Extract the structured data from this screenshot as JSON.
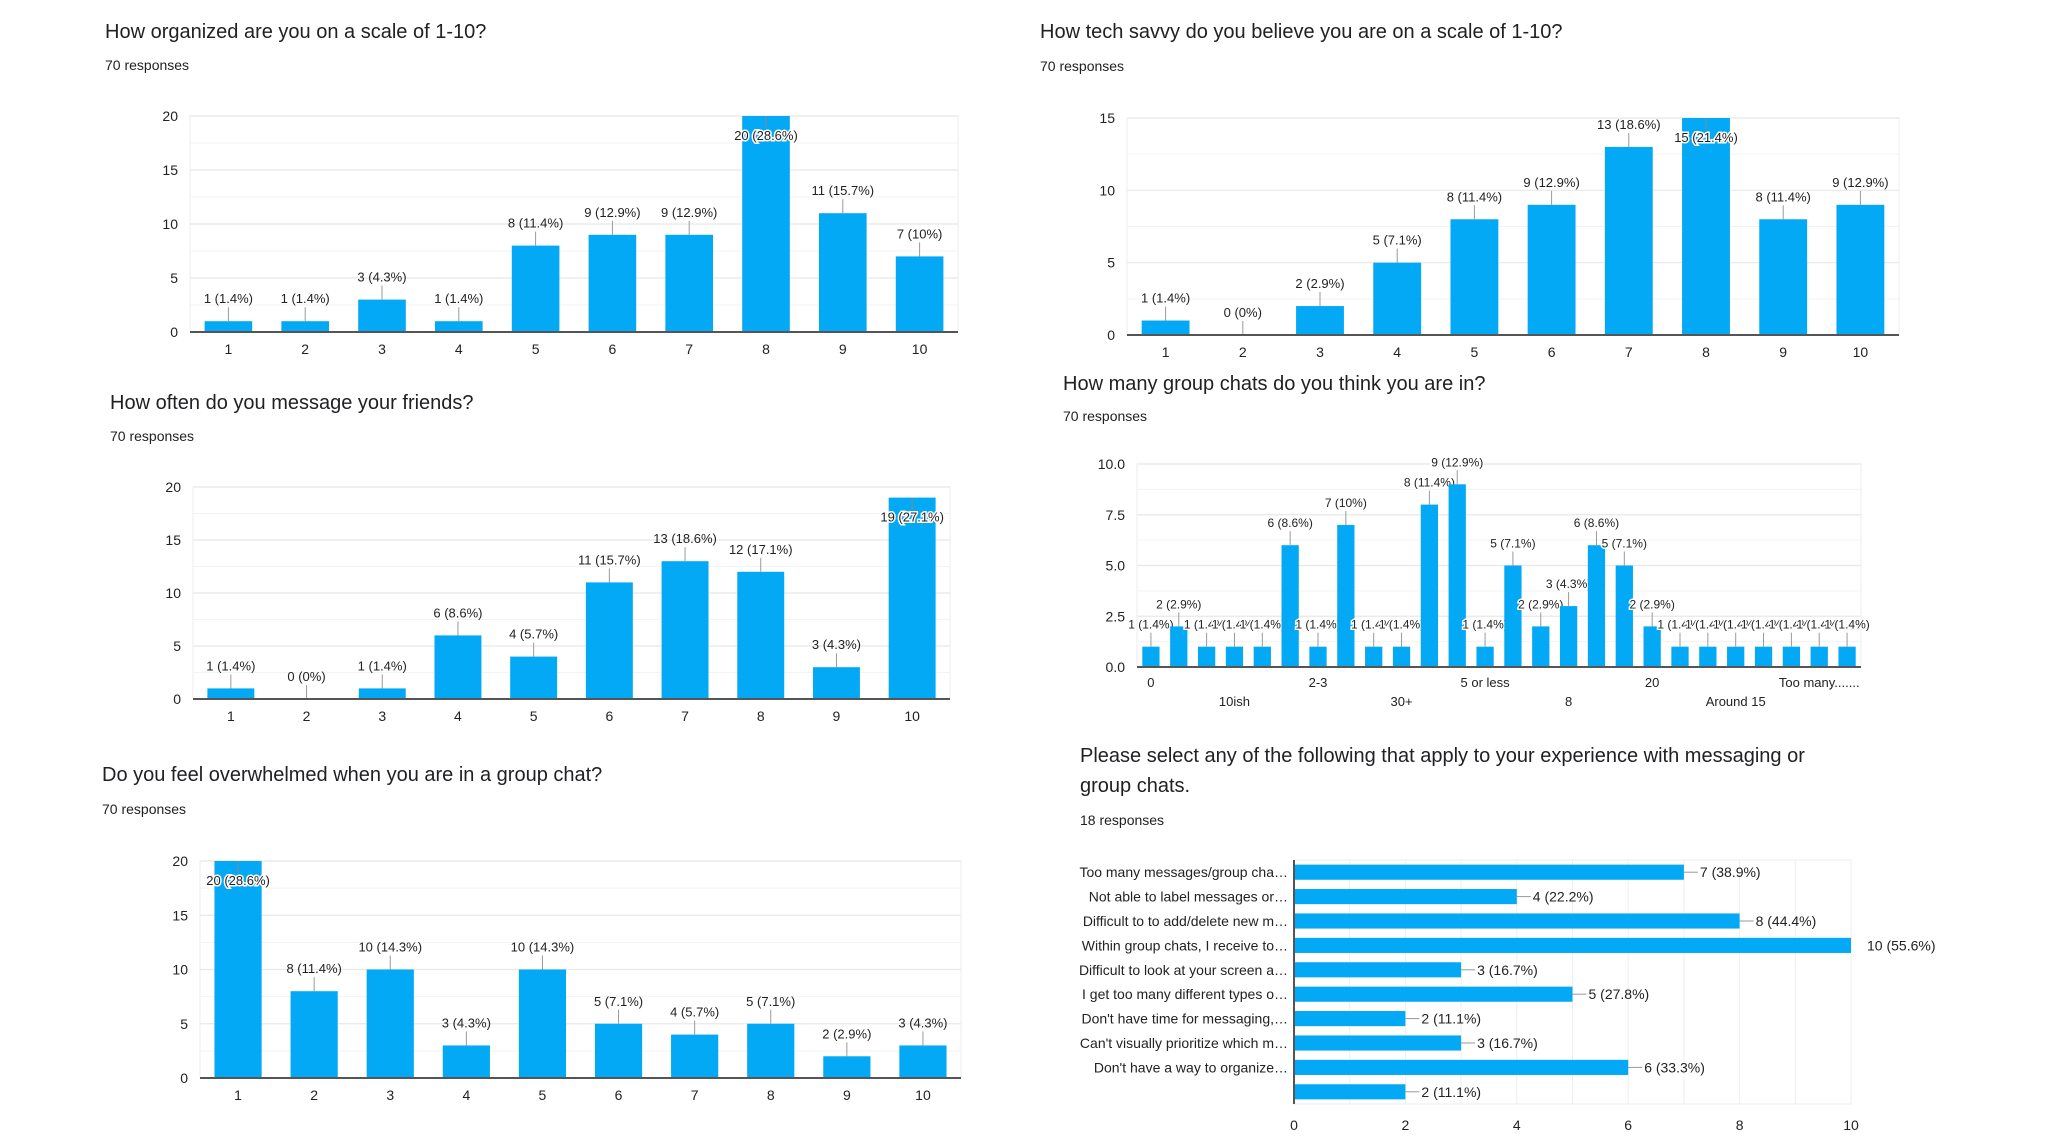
{
  "bar_color": "#03A9F4",
  "chart_data": [
    {
      "id": "organized",
      "type": "bar",
      "title": "How organized are you on a scale of 1-10?",
      "responses": "70 responses",
      "categories": [
        "1",
        "2",
        "3",
        "4",
        "5",
        "6",
        "7",
        "8",
        "9",
        "10"
      ],
      "values": [
        1,
        1,
        3,
        1,
        8,
        9,
        9,
        20,
        11,
        7
      ],
      "labels": [
        "1 (1.4%)",
        "1 (1.4%)",
        "3 (4.3%)",
        "1 (1.4%)",
        "8 (11.4%)",
        "9 (12.9%)",
        "9 (12.9%)",
        "20 (28.6%)",
        "11 (15.7%)",
        "7 (10%)"
      ],
      "ylim": [
        0,
        20
      ],
      "yticks": [
        "0",
        "5",
        "10",
        "15",
        "20"
      ],
      "ytick_values": [
        0,
        5,
        10,
        15,
        20
      ],
      "grid": true,
      "xlabel": "",
      "ylabel": ""
    },
    {
      "id": "tech-savvy",
      "type": "bar",
      "title": "How tech savvy do you believe you are on a scale of 1-10?",
      "responses": "70 responses",
      "categories": [
        "1",
        "2",
        "3",
        "4",
        "5",
        "6",
        "7",
        "8",
        "9",
        "10"
      ],
      "values": [
        1,
        0,
        2,
        5,
        8,
        9,
        13,
        15,
        8,
        9
      ],
      "labels": [
        "1 (1.4%)",
        "0 (0%)",
        "2 (2.9%)",
        "5 (7.1%)",
        "8 (11.4%)",
        "9 (12.9%)",
        "13 (18.6%)",
        "15 (21.4%)",
        "8 (11.4%)",
        "9 (12.9%)"
      ],
      "ylim": [
        0,
        15
      ],
      "yticks": [
        "0",
        "5",
        "10",
        "15"
      ],
      "ytick_values": [
        0,
        5,
        10,
        15
      ],
      "grid": true,
      "xlabel": "",
      "ylabel": ""
    },
    {
      "id": "message-friends",
      "type": "bar",
      "title": "How often do you message your friends?",
      "responses": "70 responses",
      "categories": [
        "1",
        "2",
        "3",
        "4",
        "5",
        "6",
        "7",
        "8",
        "9",
        "10"
      ],
      "values": [
        1,
        0,
        1,
        6,
        4,
        11,
        13,
        12,
        3,
        19
      ],
      "labels": [
        "1 (1.4%)",
        "0 (0%)",
        "1 (1.4%)",
        "6 (8.6%)",
        "4 (5.7%)",
        "11 (15.7%)",
        "13 (18.6%)",
        "12 (17.1%)",
        "3 (4.3%)",
        "19 (27.1%)"
      ],
      "ylim": [
        0,
        20
      ],
      "yticks": [
        "0",
        "5",
        "10",
        "15",
        "20"
      ],
      "ytick_values": [
        0,
        5,
        10,
        15,
        20
      ],
      "grid": true,
      "xlabel": "",
      "ylabel": ""
    },
    {
      "id": "group-chats",
      "type": "bar",
      "title": "How many group chats do you think you are in?",
      "responses": "70 responses",
      "values": [
        1,
        2,
        1,
        1,
        1,
        6,
        1,
        7,
        1,
        1,
        8,
        9,
        1,
        5,
        2,
        3,
        6,
        5,
        2,
        1,
        1,
        1,
        1,
        1,
        1,
        1
      ],
      "labels": [
        "1 (1.4%)",
        "2 (2.9%)",
        "1 (1.4%)",
        "1 (1.4%)",
        "1 (1.4%)",
        "6 (8.6%)",
        "1 (1.4%)",
        "7 (10%)",
        "1 (1.4%)",
        "1 (1.4%)",
        "8 (11.4%)",
        "9 (12.9%)",
        "1 (1.4%)",
        "5 (7.1%)",
        "2 (2.9%)",
        "3 (4.3%)",
        "6 (8.6%)",
        "5 (7.1%)",
        "2 (2.9%)",
        "1 (1.4%)",
        "1 (1.4%)",
        "1 (1.4%)",
        "1 (1.4%)",
        "1 (1.4%)",
        "1 (1.4%)",
        "1 (1.4%)"
      ],
      "visible_xticks": [
        {
          "index": 0,
          "label": "0",
          "row": 0
        },
        {
          "index": 3,
          "label": "10ish",
          "row": 1
        },
        {
          "index": 6,
          "label": "2-3",
          "row": 0
        },
        {
          "index": 9,
          "label": "30+",
          "row": 1
        },
        {
          "index": 12,
          "label": "5 or less",
          "row": 0
        },
        {
          "index": 15,
          "label": "8",
          "row": 1
        },
        {
          "index": 18,
          "label": "20",
          "row": 0
        },
        {
          "index": 21,
          "label": "Around 15",
          "row": 1
        },
        {
          "index": 24,
          "label": "Too many.......",
          "row": 0
        }
      ],
      "ylim": [
        0,
        10
      ],
      "yticks": [
        "0.0",
        "2.5",
        "5.0",
        "7.5",
        "10.0"
      ],
      "ytick_values": [
        0,
        2.5,
        5,
        7.5,
        10
      ],
      "grid": true,
      "xlabel": "",
      "ylabel": ""
    },
    {
      "id": "overwhelmed",
      "type": "bar",
      "title": "Do you feel overwhelmed when you are in a group chat?",
      "responses": "70 responses",
      "categories": [
        "1",
        "2",
        "3",
        "4",
        "5",
        "6",
        "7",
        "8",
        "9",
        "10"
      ],
      "values": [
        20,
        8,
        10,
        3,
        10,
        5,
        4,
        5,
        2,
        3
      ],
      "labels": [
        "20 (28.6%)",
        "8 (11.4%)",
        "10 (14.3%)",
        "3 (4.3%)",
        "10 (14.3%)",
        "5 (7.1%)",
        "4 (5.7%)",
        "5 (7.1%)",
        "2 (2.9%)",
        "3 (4.3%)"
      ],
      "ylim": [
        0,
        20
      ],
      "yticks": [
        "0",
        "5",
        "10",
        "15",
        "20"
      ],
      "ytick_values": [
        0,
        5,
        10,
        15,
        20
      ],
      "grid": true,
      "xlabel": "",
      "ylabel": ""
    },
    {
      "id": "experience",
      "type": "bar",
      "orientation": "horizontal",
      "title_line1": "Please select any of the following that apply to your experience with messaging or",
      "title_line2": "group chats.",
      "responses": "18 responses",
      "categories": [
        "Too many messages/group cha…",
        "Not able to label messages or…",
        "Difficult to to add/delete new m…",
        "Within group chats, I receive to…",
        "Difficult to look at your screen a…",
        "I get too many different types o…",
        "Don't have time for messaging,…",
        "Can't visually prioritize which m…",
        "Don't have a way to organize…",
        ""
      ],
      "values": [
        7,
        4,
        8,
        10,
        3,
        5,
        2,
        3,
        6,
        2
      ],
      "labels": [
        "7 (38.9%)",
        "4 (22.2%)",
        "8 (44.4%)",
        "10 (55.6%)",
        "3 (16.7%)",
        "5 (27.8%)",
        "2 (11.1%)",
        "3 (16.7%)",
        "6 (33.3%)",
        "2 (11.1%)"
      ],
      "xlim": [
        0,
        10
      ],
      "xticks": [
        "0",
        "2",
        "4",
        "6",
        "8",
        "10"
      ],
      "xtick_values": [
        0,
        2,
        4,
        6,
        8,
        10
      ],
      "grid": true,
      "xlabel": "",
      "ylabel": ""
    }
  ]
}
